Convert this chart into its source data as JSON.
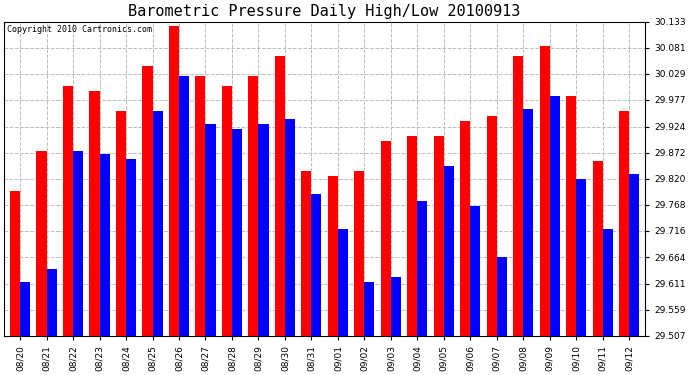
{
  "title": "Barometric Pressure Daily High/Low 20100913",
  "copyright": "Copyright 2010 Cartronics.com",
  "labels": [
    "08/20",
    "08/21",
    "08/22",
    "08/23",
    "08/24",
    "08/25",
    "08/26",
    "08/27",
    "08/28",
    "08/29",
    "08/30",
    "08/31",
    "09/01",
    "09/02",
    "09/03",
    "09/04",
    "09/05",
    "09/06",
    "09/07",
    "09/08",
    "09/09",
    "09/10",
    "09/11",
    "09/12"
  ],
  "highs": [
    29.795,
    29.875,
    30.005,
    29.995,
    29.955,
    30.045,
    30.125,
    30.025,
    30.005,
    30.025,
    30.065,
    29.835,
    29.825,
    29.835,
    29.895,
    29.905,
    29.905,
    29.935,
    29.945,
    30.065,
    30.085,
    29.985,
    29.855,
    29.955
  ],
  "lows": [
    29.615,
    29.64,
    29.875,
    29.87,
    29.86,
    29.955,
    30.025,
    29.93,
    29.92,
    29.93,
    29.94,
    29.79,
    29.72,
    29.615,
    29.625,
    29.775,
    29.845,
    29.765,
    29.665,
    29.96,
    29.985,
    29.82,
    29.72,
    29.83
  ],
  "high_color": "#ff0000",
  "low_color": "#0000ff",
  "bg_color": "#ffffff",
  "grid_color": "#bbbbbb",
  "ymin": 29.507,
  "ymax": 30.133,
  "yticks": [
    29.507,
    29.559,
    29.611,
    29.664,
    29.716,
    29.768,
    29.82,
    29.872,
    29.924,
    29.977,
    30.029,
    30.081,
    30.133
  ],
  "bar_width": 0.38,
  "title_fontsize": 11,
  "tick_fontsize": 6.5,
  "copyright_fontsize": 6
}
